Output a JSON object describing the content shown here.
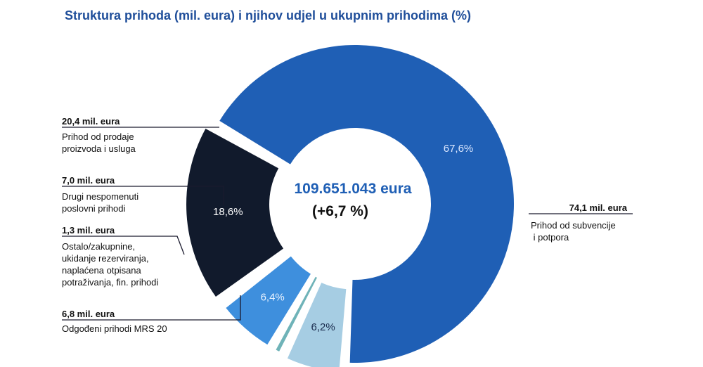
{
  "chart_data": {
    "type": "pie",
    "title": "Struktura prihoda (mil. eura) i njihov udjel u ukupnim prihodima (%)",
    "center": {
      "total": "109.651.043 eura",
      "change": "(+6,7 %)"
    },
    "slices": [
      {
        "label": "Prihod od subvencije i potpora",
        "amount": "74,1 mil. eura",
        "value": 67.6,
        "pct_label": "67,6%",
        "color": "#1f5fb5",
        "text_color": "#dbe7ff",
        "desc_lines": [
          "Prihod od subvencije",
          " i potpora"
        ]
      },
      {
        "label": "Odgođeni prihodi MRS 20",
        "amount": "6,8 mil. eura",
        "value": 6.2,
        "pct_label": "6,2%",
        "color": "#a6cde3",
        "text_color": "#1a2c4e",
        "desc_lines": [
          "Odgođeni prihodi MRS 20"
        ]
      },
      {
        "label": "Ostalo/zakupnine, ukidanje rezerviranja, naplaćena otpisana potraživanja, fin. prihodi",
        "amount": "1,3 mil. eura",
        "value": 1.2,
        "pct_label": "1,2%",
        "color": "#6fb3b8",
        "text_color": "#0d1a3a",
        "desc_lines": [
          "Ostalo/zakupnine,",
          "ukidanje rezerviranja,",
          "naplaćena otpisana",
          "potraživanja, fin. prihodi"
        ]
      },
      {
        "label": "Drugi nespomenuti poslovni prihodi",
        "amount": "7,0 mil. eura",
        "value": 6.4,
        "pct_label": "6,4%",
        "color": "#3e8fdd",
        "text_color": "#eaf3ff",
        "desc_lines": [
          "Drugi nespomenuti",
          "poslovni prihodi"
        ]
      },
      {
        "label": "Prihod od prodaje proizvoda i usluga",
        "amount": "20,4 mil. eura",
        "value": 18.6,
        "pct_label": "18,6%",
        "color": "#111a2c",
        "text_color": "#ffffff",
        "desc_lines": [
          "Prihod od prodaje",
          "proizvoda i usluga"
        ]
      }
    ]
  }
}
